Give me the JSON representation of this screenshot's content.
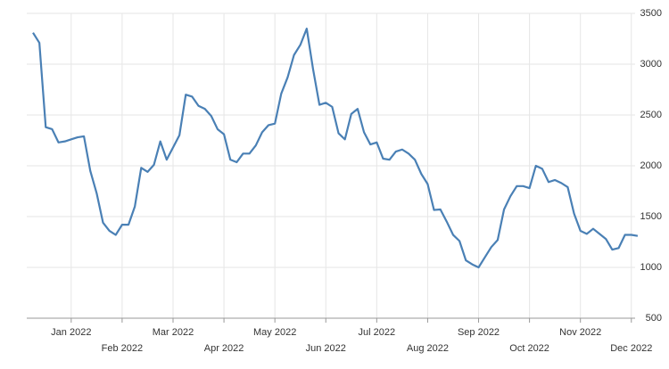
{
  "chart_data": {
    "type": "line",
    "categories": [
      null,
      null,
      null,
      null,
      null,
      null,
      "Jan 2022",
      null,
      null,
      null,
      null,
      null,
      null,
      null,
      "Feb 2022",
      null,
      null,
      null,
      null,
      null,
      null,
      null,
      "Mar 2022",
      null,
      null,
      null,
      null,
      null,
      null,
      null,
      "Apr 2022",
      null,
      null,
      null,
      null,
      null,
      null,
      null,
      "May 2022",
      null,
      null,
      null,
      null,
      null,
      null,
      null,
      "Jun 2022",
      null,
      null,
      null,
      null,
      null,
      null,
      null,
      "Jul 2022",
      null,
      null,
      null,
      null,
      null,
      null,
      null,
      "Aug 2022",
      null,
      null,
      null,
      null,
      null,
      null,
      null,
      "Sep 2022",
      null,
      null,
      null,
      null,
      null,
      null,
      null,
      "Oct 2022",
      null,
      null,
      null,
      null,
      null,
      null,
      null,
      "Nov 2022",
      null,
      null,
      null,
      null,
      null,
      null,
      null,
      "Dec 2022",
      null
    ],
    "series": [
      {
        "color": "#4a80b5",
        "values": [
          3310,
          3210,
          2380,
          2360,
          2230,
          2240,
          2260,
          2280,
          2290,
          1950,
          1730,
          1440,
          1360,
          1320,
          1420,
          1420,
          1600,
          1980,
          1940,
          2010,
          2240,
          2060,
          2180,
          2300,
          2700,
          2680,
          2590,
          2560,
          2490,
          2360,
          2310,
          2060,
          2035,
          2120,
          2120,
          2200,
          2330,
          2400,
          2415,
          2710,
          2870,
          3090,
          3190,
          3350,
          2950,
          2600,
          2620,
          2580,
          2320,
          2260,
          2510,
          2560,
          2330,
          2210,
          2230,
          2070,
          2060,
          2140,
          2160,
          2120,
          2060,
          1920,
          1820,
          1565,
          1570,
          1450,
          1320,
          1260,
          1070,
          1030,
          1000,
          1100,
          1200,
          1270,
          1570,
          1700,
          1800,
          1800,
          1780,
          2000,
          1970,
          1840,
          1860,
          1830,
          1790,
          1530,
          1360,
          1330,
          1380,
          1330,
          1280,
          1175,
          1190,
          1320,
          1320,
          1310
        ]
      }
    ],
    "ylim": [
      500,
      3500
    ],
    "yticks": [
      500,
      1000,
      1500,
      2000,
      2500,
      3000,
      3500
    ],
    "grid": true
  }
}
